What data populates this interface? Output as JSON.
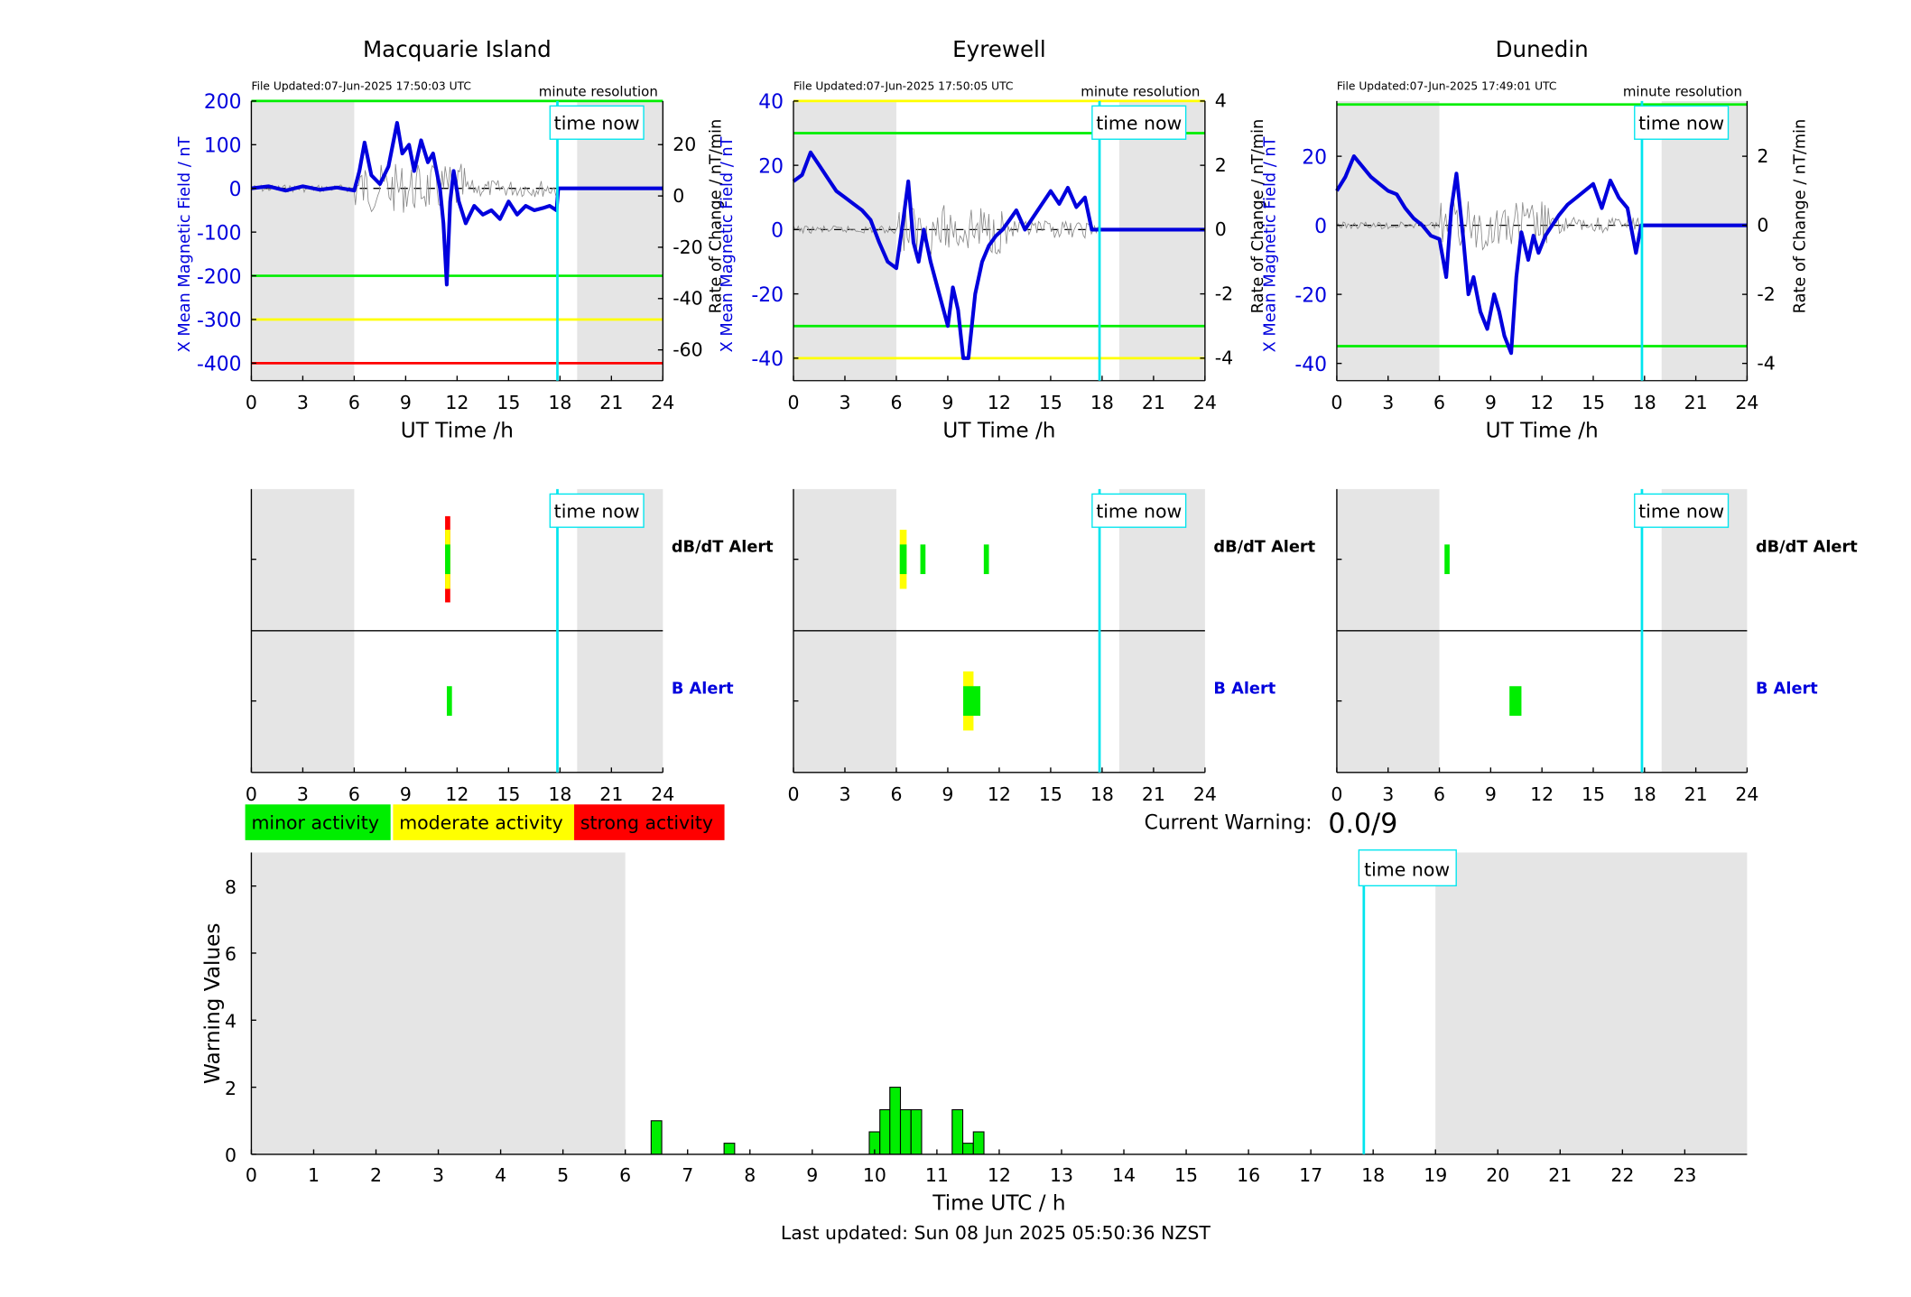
{
  "page": {
    "last_updated": "Last updated: Sun 08 Jun 2025 05:50:36 NZST",
    "current_warning_label": "Current Warning:",
    "current_warning_value": "0.0/9",
    "time_now_label": "time now",
    "legend": [
      {
        "label": "minor activity",
        "color": "#00ee00"
      },
      {
        "label": "moderate activity",
        "color": "#ffff00"
      },
      {
        "label": "strong activity",
        "color": "#ff0000"
      }
    ],
    "colors": {
      "field": "#0000dd",
      "time_now": "#00e5ee",
      "night_shade": "#e5e5e5",
      "minor": "#00ee00",
      "moderate": "#ffff00",
      "strong": "#ff0000"
    }
  },
  "chart_data": [
    {
      "type": "line",
      "station": "Macquarie Island",
      "file_updated": "File Updated:07-Jun-2025 17:50:03 UTC",
      "resolution": "minute resolution",
      "xlabel": "UT Time /h",
      "ylabel": "X Mean Magnetic Field / nT",
      "y2label": "Rate of Change / nT/min",
      "xlim": [
        0,
        24
      ],
      "xticks": [
        0,
        3,
        6,
        9,
        12,
        15,
        18,
        21,
        24
      ],
      "ylim": [
        -440,
        200
      ],
      "yticks": [
        200,
        100,
        0,
        -100,
        -200,
        -300,
        -400
      ],
      "y2lim": [
        -72,
        37
      ],
      "y2ticks": [
        20,
        0,
        -20,
        -40,
        -60
      ],
      "night_shading": [
        [
          0,
          6
        ],
        [
          19,
          24
        ]
      ],
      "time_now": 17.85,
      "thresholds": [
        {
          "value": 200,
          "color": "#00ee00"
        },
        {
          "value": -200,
          "color": "#00ee00"
        },
        {
          "value": -300,
          "color": "#ffff00"
        },
        {
          "value": -400,
          "color": "#ff0000"
        }
      ],
      "series": [
        {
          "x": [
            0,
            1,
            2,
            3,
            4,
            5,
            6,
            6.3,
            6.6,
            7,
            7.5,
            8,
            8.5,
            8.8,
            9.2,
            9.5,
            9.9,
            10.3,
            10.6,
            11,
            11.2,
            11.4,
            11.6,
            11.8,
            12.1,
            12.5,
            13,
            13.5,
            14,
            14.5,
            15,
            15.5,
            16,
            16.5,
            17,
            17.4,
            17.8,
            17.9,
            24
          ],
          "y": [
            0,
            5,
            -5,
            5,
            -3,
            2,
            -5,
            40,
            105,
            30,
            10,
            50,
            150,
            80,
            100,
            40,
            110,
            60,
            80,
            0,
            -80,
            -220,
            -30,
            40,
            -30,
            -80,
            -40,
            -60,
            -50,
            -70,
            -30,
            -60,
            -40,
            -50,
            -45,
            -40,
            -50,
            0,
            0
          ]
        }
      ]
    },
    {
      "type": "line",
      "station": "Eyrewell",
      "file_updated": "File Updated:07-Jun-2025 17:50:05 UTC",
      "resolution": "minute resolution",
      "xlabel": "UT Time /h",
      "ylabel": "X Mean Magnetic Field / nT",
      "y2label": "Rate of Change / nT/min",
      "xlim": [
        0,
        24
      ],
      "xticks": [
        0,
        3,
        6,
        9,
        12,
        15,
        18,
        21,
        24
      ],
      "ylim": [
        -47,
        40
      ],
      "yticks": [
        40,
        20,
        0,
        -20,
        -40
      ],
      "y2lim": [
        -4.7,
        4
      ],
      "y2ticks": [
        4,
        2,
        0,
        -2,
        -4
      ],
      "night_shading": [
        [
          0,
          6
        ],
        [
          19,
          24
        ]
      ],
      "time_now": 17.85,
      "thresholds": [
        {
          "value": 40,
          "color": "#ffff00"
        },
        {
          "value": 30,
          "color": "#00ee00"
        },
        {
          "value": -30,
          "color": "#00ee00"
        },
        {
          "value": -40,
          "color": "#ffff00"
        }
      ],
      "series": [
        {
          "x": [
            0,
            0.5,
            1,
            1.5,
            2,
            2.5,
            3,
            3.5,
            4,
            4.5,
            5,
            5.5,
            6,
            6.4,
            6.7,
            7,
            7.3,
            7.6,
            8,
            8.5,
            9,
            9.3,
            9.6,
            9.9,
            10.2,
            10.6,
            11,
            11.4,
            11.8,
            12.2,
            12.6,
            13,
            13.5,
            14,
            14.5,
            15,
            15.5,
            16,
            16.5,
            17,
            17.4,
            24
          ],
          "y": [
            15,
            17,
            24,
            20,
            16,
            12,
            10,
            8,
            6,
            3,
            -4,
            -10,
            -12,
            3,
            15,
            -4,
            -10,
            0,
            -10,
            -20,
            -30,
            -18,
            -25,
            -40,
            -40,
            -20,
            -10,
            -5,
            -2,
            0,
            3,
            6,
            0,
            4,
            8,
            12,
            8,
            13,
            7,
            10,
            0,
            0
          ]
        }
      ]
    },
    {
      "type": "line",
      "station": "Dunedin",
      "file_updated": "File Updated:07-Jun-2025 17:49:01 UTC",
      "resolution": "minute resolution",
      "xlabel": "UT Time /h",
      "ylabel": "X Mean Magnetic Field / nT",
      "y2label": "Rate of Change / nT/min",
      "xlim": [
        0,
        24
      ],
      "xticks": [
        0,
        3,
        6,
        9,
        12,
        15,
        18,
        21,
        24
      ],
      "ylim": [
        -45,
        36
      ],
      "yticks": [
        20,
        0,
        -20,
        -40
      ],
      "y2lim": [
        -4.5,
        3.6
      ],
      "y2ticks": [
        2,
        0,
        -2,
        -4
      ],
      "night_shading": [
        [
          0,
          6
        ],
        [
          19,
          24
        ]
      ],
      "time_now": 17.85,
      "thresholds": [
        {
          "value": 35,
          "color": "#00ee00"
        },
        {
          "value": -35,
          "color": "#00ee00"
        }
      ],
      "series": [
        {
          "x": [
            0,
            0.5,
            1,
            1.5,
            2,
            2.5,
            3,
            3.5,
            4,
            4.5,
            5,
            5.5,
            6,
            6.4,
            6.7,
            7,
            7.4,
            7.7,
            8,
            8.4,
            8.8,
            9.2,
            9.5,
            9.8,
            10.2,
            10.5,
            10.8,
            11.2,
            11.5,
            11.8,
            12.2,
            12.6,
            13,
            13.5,
            14,
            14.5,
            15,
            15.5,
            16,
            16.5,
            17,
            17.5,
            17.8,
            24
          ],
          "y": [
            10,
            14,
            20,
            17,
            14,
            12,
            10,
            9,
            5,
            2,
            0,
            -3,
            -4,
            -15,
            5,
            15,
            -4,
            -20,
            -15,
            -25,
            -30,
            -20,
            -25,
            -32,
            -37,
            -15,
            -2,
            -10,
            -3,
            -8,
            -3,
            0,
            3,
            6,
            8,
            10,
            12,
            5,
            13,
            8,
            5,
            -8,
            0,
            0
          ]
        }
      ]
    },
    {
      "type": "alert",
      "station": "Macquarie Island",
      "rows": [
        "dB/dT Alert",
        "B Alert"
      ],
      "row_colors": [
        "#000000",
        "#0000dd"
      ],
      "xlim": [
        0,
        24
      ],
      "xticks": [
        0,
        3,
        6,
        9,
        12,
        15,
        18,
        21,
        24
      ],
      "night_shading": [
        [
          0,
          6
        ],
        [
          19,
          24
        ]
      ],
      "time_now": 17.85,
      "alerts": [
        {
          "row": 0,
          "x0": 11.3,
          "x1": 11.6,
          "level": "strong"
        },
        {
          "row": 0,
          "x0": 11.3,
          "x1": 11.6,
          "level": "moderate"
        },
        {
          "row": 0,
          "x0": 11.3,
          "x1": 11.6,
          "level": "minor"
        },
        {
          "row": 1,
          "x0": 11.4,
          "x1": 11.7,
          "level": "minor"
        }
      ]
    },
    {
      "type": "alert",
      "station": "Eyrewell",
      "rows": [
        "dB/dT Alert",
        "B Alert"
      ],
      "row_colors": [
        "#000000",
        "#0000dd"
      ],
      "xlim": [
        0,
        24
      ],
      "xticks": [
        0,
        3,
        6,
        9,
        12,
        15,
        18,
        21,
        24
      ],
      "night_shading": [
        [
          0,
          6
        ],
        [
          19,
          24
        ]
      ],
      "time_now": 17.85,
      "alerts": [
        {
          "row": 0,
          "x0": 6.2,
          "x1": 6.6,
          "level": "moderate"
        },
        {
          "row": 0,
          "x0": 6.2,
          "x1": 6.6,
          "level": "minor"
        },
        {
          "row": 0,
          "x0": 7.4,
          "x1": 7.7,
          "level": "minor"
        },
        {
          "row": 0,
          "x0": 11.1,
          "x1": 11.4,
          "level": "minor"
        },
        {
          "row": 1,
          "x0": 9.9,
          "x1": 10.5,
          "level": "moderate"
        },
        {
          "row": 1,
          "x0": 9.9,
          "x1": 10.9,
          "level": "minor"
        }
      ]
    },
    {
      "type": "alert",
      "station": "Dunedin",
      "rows": [
        "dB/dT Alert",
        "B Alert"
      ],
      "row_colors": [
        "#000000",
        "#0000dd"
      ],
      "xlim": [
        0,
        24
      ],
      "xticks": [
        0,
        3,
        6,
        9,
        12,
        15,
        18,
        21,
        24
      ],
      "night_shading": [
        [
          0,
          6
        ],
        [
          19,
          24
        ]
      ],
      "time_now": 17.85,
      "alerts": [
        {
          "row": 0,
          "x0": 6.3,
          "x1": 6.6,
          "level": "minor"
        },
        {
          "row": 1,
          "x0": 10.1,
          "x1": 10.8,
          "level": "minor"
        }
      ]
    },
    {
      "type": "bar",
      "xlabel": "Time UTC / h",
      "ylabel": "Warning Values",
      "xlim": [
        0,
        24
      ],
      "xticks": [
        0,
        1,
        2,
        3,
        4,
        5,
        6,
        7,
        8,
        9,
        10,
        11,
        12,
        13,
        14,
        15,
        16,
        17,
        18,
        19,
        20,
        21,
        22,
        23
      ],
      "ylim": [
        0,
        9
      ],
      "yticks": [
        0,
        2,
        4,
        6,
        8
      ],
      "night_shading": [
        [
          0,
          6
        ],
        [
          19,
          24
        ]
      ],
      "time_now": 17.85,
      "bar_width": 0.17,
      "bars": [
        {
          "x": 6.5,
          "value": 1
        },
        {
          "x": 7.67,
          "value": 0.33
        },
        {
          "x": 10.0,
          "value": 0.67
        },
        {
          "x": 10.17,
          "value": 1.33
        },
        {
          "x": 10.33,
          "value": 2
        },
        {
          "x": 10.5,
          "value": 1.33
        },
        {
          "x": 10.67,
          "value": 1.33
        },
        {
          "x": 11.33,
          "value": 1.33
        },
        {
          "x": 11.5,
          "value": 0.33
        },
        {
          "x": 11.67,
          "value": 0.67
        }
      ]
    }
  ]
}
